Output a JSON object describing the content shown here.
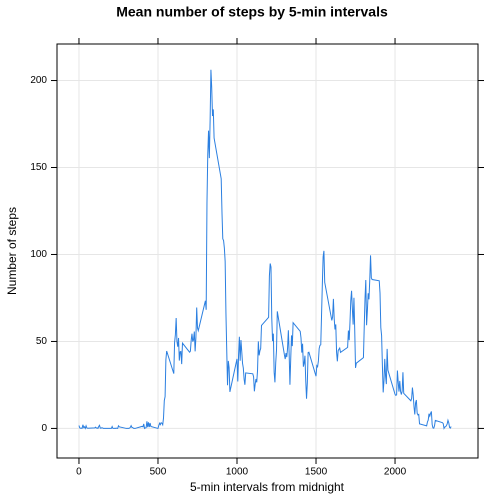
{
  "chart_data": {
    "type": "line",
    "title": "Mean number of steps by 5-min intervals",
    "xlabel": "5-min intervals from midnight",
    "ylabel": "Number of steps",
    "xlim": [
      -139,
      2525
    ],
    "ylim": [
      -17,
      221
    ],
    "xticks": [
      0,
      500,
      1000,
      1500,
      2000
    ],
    "yticks": [
      0,
      50,
      100,
      150,
      200
    ],
    "grid": true,
    "color": "#2b7fe0",
    "x": [
      0,
      5,
      10,
      15,
      20,
      25,
      30,
      35,
      40,
      45,
      50,
      55,
      100,
      105,
      110,
      115,
      120,
      125,
      130,
      135,
      140,
      145,
      150,
      155,
      200,
      205,
      210,
      215,
      220,
      225,
      230,
      235,
      240,
      245,
      250,
      255,
      300,
      305,
      310,
      315,
      320,
      325,
      330,
      335,
      340,
      345,
      350,
      355,
      400,
      405,
      410,
      415,
      420,
      425,
      430,
      435,
      440,
      445,
      450,
      455,
      500,
      505,
      510,
      515,
      520,
      525,
      530,
      535,
      540,
      545,
      550,
      555,
      600,
      605,
      610,
      615,
      620,
      625,
      630,
      635,
      640,
      645,
      650,
      655,
      700,
      705,
      710,
      715,
      720,
      725,
      730,
      735,
      740,
      745,
      750,
      755,
      800,
      805,
      810,
      815,
      820,
      825,
      830,
      835,
      840,
      845,
      850,
      855,
      900,
      905,
      910,
      915,
      920,
      925,
      930,
      935,
      940,
      945,
      950,
      955,
      1000,
      1005,
      1010,
      1015,
      1020,
      1025,
      1030,
      1035,
      1040,
      1045,
      1050,
      1055,
      1100,
      1105,
      1110,
      1115,
      1120,
      1125,
      1130,
      1135,
      1140,
      1145,
      1150,
      1155,
      1200,
      1205,
      1210,
      1215,
      1220,
      1225,
      1230,
      1235,
      1240,
      1245,
      1250,
      1255,
      1300,
      1305,
      1310,
      1315,
      1320,
      1325,
      1330,
      1335,
      1340,
      1345,
      1350,
      1355,
      1400,
      1405,
      1410,
      1415,
      1420,
      1425,
      1430,
      1435,
      1440,
      1445,
      1450,
      1455,
      1500,
      1505,
      1510,
      1515,
      1520,
      1525,
      1530,
      1535,
      1540,
      1545,
      1550,
      1555,
      1600,
      1605,
      1610,
      1615,
      1620,
      1625,
      1630,
      1635,
      1640,
      1645,
      1650,
      1655,
      1700,
      1705,
      1710,
      1715,
      1720,
      1725,
      1730,
      1735,
      1740,
      1745,
      1750,
      1755,
      1800,
      1805,
      1810,
      1815,
      1820,
      1825,
      1830,
      1835,
      1840,
      1845,
      1850,
      1855,
      1900,
      1905,
      1910,
      1915,
      1920,
      1925,
      1930,
      1935,
      1940,
      1945,
      1950,
      1955,
      2000,
      2005,
      2010,
      2015,
      2020,
      2025,
      2030,
      2035,
      2040,
      2045,
      2050,
      2055,
      2100,
      2105,
      2110,
      2115,
      2120,
      2125,
      2130,
      2135,
      2140,
      2145,
      2150,
      2155,
      2200,
      2205,
      2210,
      2215,
      2220,
      2225,
      2230,
      2235,
      2240,
      2245,
      2250,
      2255,
      2300,
      2305,
      2310,
      2315,
      2320,
      2325,
      2330,
      2335,
      2340,
      2345,
      2350,
      2355
    ],
    "values": [
      1.7,
      0.3,
      0.1,
      0.2,
      0.1,
      2.1,
      0.5,
      0.9,
      0,
      1.5,
      0.3,
      0.1,
      0.3,
      0.7,
      0.2,
      0.3,
      0,
      1.1,
      1.8,
      0.2,
      0.2,
      0.4,
      0.3,
      0,
      0,
      0,
      1.1,
      0,
      0,
      0.1,
      0,
      0.2,
      0,
      0,
      1.5,
      0.9,
      0,
      0,
      0,
      0,
      0.2,
      0.6,
      1.6,
      0.6,
      0.5,
      0.1,
      0,
      0,
      1.2,
      0.9,
      2.6,
      0,
      0.3,
      0.4,
      4.1,
      0.7,
      3.5,
      0.8,
      3.1,
      1.1,
      0,
      1.6,
      3,
      2.2,
      3.3,
      3,
      2.1,
      6,
      16,
      18.3,
      39.5,
      44.5,
      31.5,
      49.3,
      53.8,
      63.5,
      50,
      47,
      52,
      39,
      44,
      44.2,
      37,
      49,
      43.8,
      44.4,
      50.5,
      54.5,
      49.9,
      51,
      55.7,
      44.3,
      52.3,
      69.5,
      57.8,
      56.2,
      73.4,
      68.2,
      129.4,
      157.5,
      171.2,
      155.4,
      177.3,
      206.2,
      195.9,
      179.6,
      183.4,
      167,
      143.5,
      124,
      109,
      108,
      103.7,
      96,
      66.2,
      45.2,
      24.8,
      38.8,
      35,
      21,
      40,
      27,
      42.4,
      52.7,
      38.9,
      50.8,
      44.3,
      37.4,
      34.7,
      28.3,
      25.1,
      31.9,
      31.4,
      29.7,
      21.3,
      25.5,
      28.4,
      26.5,
      33.4,
      50,
      42,
      44.6,
      46,
      59.2,
      63.9,
      87.7,
      94.8,
      92.8,
      63.4,
      50.2,
      54.5,
      32.4,
      26.5,
      37.7,
      45.1,
      67.3,
      42.3,
      39.9,
      43.3,
      41,
      46.2,
      56.4,
      42.8,
      25.1,
      40,
      53.5,
      47.3,
      60.8,
      55.8,
      52,
      43.6,
      48.7,
      35.5,
      37.5,
      41.8,
      27.5,
      17.1,
      26.1,
      43.6,
      43.8,
      30,
      36.1,
      35.5,
      38.8,
      46,
      47.8,
      48.1,
      65.3,
      82.9,
      98.7,
      102.1,
      84,
      62.1,
      64.1,
      74.5,
      63.2,
      56.9,
      59.8,
      43.9,
      38.6,
      44.7,
      45.5,
      46.2,
      43.7,
      46.6,
      56.3,
      50.7,
      61.2,
      73.4,
      79.1,
      68.9,
      59.7,
      75.1,
      56.5,
      34.8,
      37.5,
      40.7,
      58,
      74.7,
      85.3,
      59.3,
      67.8,
      77.7,
      74.2,
      85.3,
      99.5,
      86.6,
      85.6,
      84.9,
      77.8,
      58,
      53.4,
      36.3,
      20.7,
      27.4,
      40,
      30.2,
      25.5,
      45.7,
      33.5,
      19.6,
      19,
      19.3,
      33.3,
      26.8,
      21.2,
      27.3,
      21.3,
      19.5,
      21.3,
      32.3,
      20.2,
      15.9,
      17.2,
      23.5,
      19.2,
      12.5,
      8,
      14.7,
      16.3,
      8.7,
      7.8,
      8.1,
      2.6,
      1.5,
      3.7,
      4.8,
      8.5,
      7.1,
      8.7,
      9.8,
      2.2,
      0.3,
      0.1,
      1.6,
      4.6,
      3.3,
      2.8,
      0,
      0.8,
      1,
      1.6,
      2.6,
      4.7,
      3.3,
      0.6,
      0.2,
      1.1
    ]
  }
}
